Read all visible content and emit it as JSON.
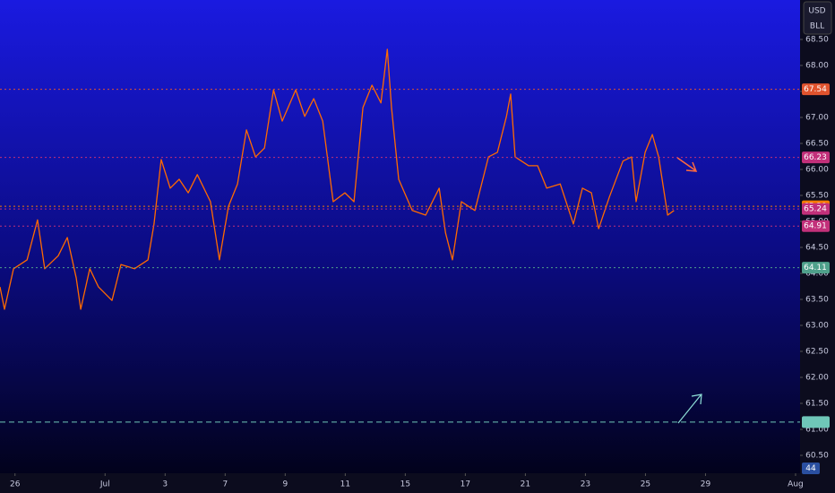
{
  "chart_data": {
    "type": "line",
    "header": {
      "currency": "USD",
      "unit": "BLL"
    },
    "series": [
      {
        "color": "#ff6a00",
        "x": [
          -0.5,
          -0.35,
          -0.05,
          0.4,
          0.75,
          0.99,
          1.44,
          1.74,
          2.04,
          2.19,
          2.49,
          2.78,
          3.23,
          3.53,
          3.98,
          4.43,
          4.63,
          4.87,
          5.17,
          5.47,
          5.77,
          6.07,
          6.51,
          6.81,
          7.11,
          7.41,
          7.71,
          8.01,
          8.31,
          8.61,
          8.9,
          9.35,
          9.65,
          9.95,
          10.25,
          10.6,
          10.99,
          11.29,
          11.59,
          11.89,
          12.19,
          12.4,
          12.54,
          12.78,
          13.23,
          13.68,
          14.13,
          14.34,
          14.57,
          14.87,
          15.32,
          15.77,
          16.07,
          16.37,
          16.51,
          16.66,
          17.11,
          17.41,
          17.71,
          18.16,
          18.6,
          18.9,
          19.2,
          19.44,
          19.8,
          20.25,
          20.54,
          20.69,
          20.99,
          21.23,
          21.44,
          21.74,
          21.95
        ],
        "values": [
          63.74,
          63.31,
          64.09,
          64.26,
          65.03,
          64.09,
          64.34,
          64.69,
          63.91,
          63.31,
          64.09,
          63.74,
          63.48,
          64.17,
          64.09,
          64.26,
          64.95,
          66.19,
          65.64,
          65.81,
          65.55,
          65.9,
          65.38,
          64.26,
          65.29,
          65.72,
          66.76,
          66.24,
          66.41,
          67.53,
          66.93,
          67.53,
          67.02,
          67.36,
          66.93,
          65.38,
          65.55,
          65.38,
          67.19,
          67.62,
          67.28,
          68.31,
          67.19,
          65.81,
          65.21,
          65.12,
          65.64,
          64.78,
          64.26,
          65.38,
          65.21,
          66.24,
          66.33,
          67.02,
          67.45,
          66.24,
          66.07,
          66.07,
          65.64,
          65.72,
          64.95,
          65.64,
          65.55,
          64.86,
          65.47,
          66.16,
          66.24,
          65.38,
          66.33,
          66.67,
          66.24,
          65.12,
          65.21
        ]
      }
    ],
    "levels": [
      {
        "value": 67.54,
        "label": "67.54",
        "color": "#e0532e"
      },
      {
        "value": 66.23,
        "label": "66.23",
        "color": "#c2307a"
      },
      {
        "value": 65.29,
        "label": "65.29",
        "color": "#f57c00"
      },
      {
        "value": 65.24,
        "label": "65.24",
        "color": "#c2307a"
      },
      {
        "value": 64.91,
        "label": "64.91",
        "color": "#c2307a"
      },
      {
        "value": 64.11,
        "label": "64.11",
        "color": "#4fa08b"
      },
      {
        "value": 61.14,
        "color": "#6fc7b8"
      }
    ],
    "volume_label": "44",
    "xlim": [
      -0.5,
      26.15
    ],
    "xticks": [
      {
        "value": 0,
        "label": "26"
      },
      {
        "value": 3,
        "label": "Jul"
      },
      {
        "value": 5,
        "label": "3"
      },
      {
        "value": 7,
        "label": "7"
      },
      {
        "value": 9,
        "label": "9"
      },
      {
        "value": 11,
        "label": "11"
      },
      {
        "value": 13,
        "label": "15"
      },
      {
        "value": 15,
        "label": "17"
      },
      {
        "value": 17,
        "label": "21"
      },
      {
        "value": 19,
        "label": "23"
      },
      {
        "value": 21,
        "label": "25"
      },
      {
        "value": 23,
        "label": "29"
      },
      {
        "value": 26,
        "label": "Aug"
      }
    ],
    "ylim": [
      60.5,
      68.5
    ],
    "yticks": [
      {
        "value": 60.5,
        "label": "60.50"
      },
      {
        "value": 61,
        "label": "61.00"
      },
      {
        "value": 61.5,
        "label": "61.50"
      },
      {
        "value": 62,
        "label": "62.00"
      },
      {
        "value": 62.5,
        "label": "62.50"
      },
      {
        "value": 63,
        "label": "63.00"
      },
      {
        "value": 63.5,
        "label": "63.50"
      },
      {
        "value": 64,
        "label": "64.00"
      },
      {
        "value": 64.5,
        "label": "64.50"
      },
      {
        "value": 65,
        "label": "65.00"
      },
      {
        "value": 65.5,
        "label": "65.50"
      },
      {
        "value": 66,
        "label": "66.00"
      },
      {
        "value": 66.5,
        "label": "66.50"
      },
      {
        "value": 67,
        "label": "67.00"
      },
      {
        "value": 67.5,
        "label": "67.50"
      },
      {
        "value": 68,
        "label": "68.00"
      },
      {
        "value": 68.5,
        "label": "68.50"
      }
    ]
  }
}
